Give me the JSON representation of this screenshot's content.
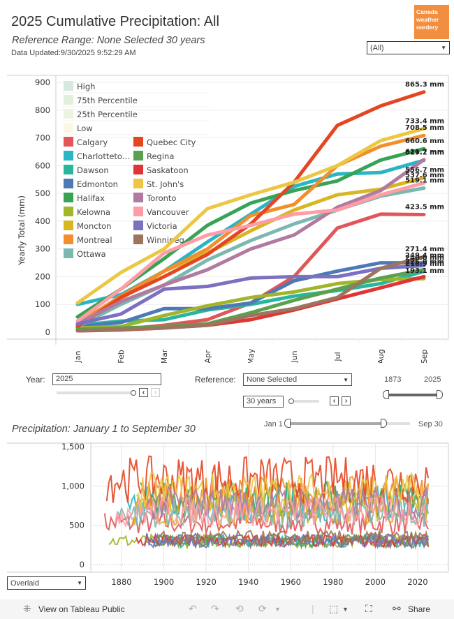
{
  "header": {
    "title": "2025 Cumulative Precipitation: All",
    "subtitle": "Reference Range: None Selected 30 years",
    "updated": "Data Updated:9/30/2025 9:52:29 AM",
    "logo_lines": [
      "Canada",
      "weather",
      "nerdery"
    ],
    "logo_color": "#f28e3f",
    "city_select": "(All)"
  },
  "legend": {
    "bands": [
      {
        "label": "High",
        "color": "#d6e8dd"
      },
      {
        "label": "75th Percentile",
        "color": "#e3efdd"
      },
      {
        "label": "25th Percentile",
        "color": "#eef3e0"
      },
      {
        "label": "Low",
        "color": "#fdf6e3"
      }
    ]
  },
  "chart_data": [
    {
      "type": "line",
      "title": "2025 Cumulative Precipitation",
      "ylabel": "Yearly Total (mm)",
      "xlabel": "",
      "categories": [
        "Jan",
        "Feb",
        "Mar",
        "Apr",
        "May",
        "Jun",
        "Jul",
        "Aug",
        "Sep"
      ],
      "ylim": [
        0,
        900
      ],
      "yticks": [
        0,
        100,
        200,
        300,
        400,
        500,
        600,
        700,
        800,
        900
      ],
      "grid": true,
      "legend_position": "top-left",
      "series": [
        {
          "name": "Calgary",
          "color": "#e15759",
          "values": [
            5,
            10,
            25,
            45,
            105,
            200,
            375,
            425,
            423.5
          ],
          "end_label": "423.5 mm"
        },
        {
          "name": "Charlotteto...",
          "color": "#2bb5c4",
          "values": [
            100,
            135,
            220,
            325,
            425,
            525,
            570,
            575,
            619.2
          ],
          "end_label": "619.2 mm"
        },
        {
          "name": "Dawson",
          "color": "#2ab59e",
          "values": [
            25,
            40,
            45,
            80,
            100,
            130,
            150,
            175,
            218.9
          ],
          "end_label": "218.9 mm"
        },
        {
          "name": "Edmonton",
          "color": "#4e79b7",
          "values": [
            20,
            35,
            85,
            85,
            105,
            185,
            220,
            250,
            249.4
          ],
          "end_label": "249.4 mm"
        },
        {
          "name": "Halifax",
          "color": "#37a355",
          "values": [
            55,
            155,
            265,
            385,
            465,
            510,
            545,
            620,
            660.6
          ],
          "end_label": "660.6 mm"
        },
        {
          "name": "Kelowna",
          "color": "#a0b52a",
          "values": [
            15,
            20,
            60,
            95,
            125,
            145,
            175,
            190,
            193.1
          ],
          "end_label": "193.1 mm"
        },
        {
          "name": "Moncton",
          "color": "#d8b623",
          "values": [
            40,
            120,
            220,
            285,
            365,
            440,
            495,
            515,
            556.7
          ],
          "end_label": "556.7 mm"
        },
        {
          "name": "Montreal",
          "color": "#f28e2b",
          "values": [
            30,
            130,
            220,
            300,
            420,
            460,
            600,
            670,
            708.5
          ],
          "end_label": "708.5 mm"
        },
        {
          "name": "Ottawa",
          "color": "#7ab8b0",
          "values": [
            20,
            100,
            170,
            260,
            330,
            390,
            440,
            490,
            519.1
          ],
          "end_label": "519.1 mm"
        },
        {
          "name": "Quebec City",
          "color": "#e44622",
          "values": [
            20,
            125,
            200,
            280,
            390,
            540,
            745,
            815,
            865.3
          ],
          "end_label": "865.3 mm"
        },
        {
          "name": "Regina",
          "color": "#59a14f",
          "values": [
            10,
            15,
            20,
            30,
            70,
            115,
            155,
            195,
            225
          ],
          "end_label": "225.0 mm"
        },
        {
          "name": "Saskatoon",
          "color": "#e03535",
          "values": [
            5,
            8,
            15,
            25,
            45,
            80,
            120,
            160,
            200
          ],
          "end_label": ""
        },
        {
          "name": "St. John's",
          "color": "#ecc744",
          "values": [
            105,
            215,
            300,
            445,
            495,
            540,
            600,
            690,
            733.4
          ],
          "end_label": "733.4 mm"
        },
        {
          "name": "Toronto",
          "color": "#b07aa1",
          "values": [
            30,
            110,
            170,
            225,
            300,
            350,
            450,
            510,
            621.7
          ],
          "end_label": "621.7 mm"
        },
        {
          "name": "Vancouver",
          "color": "#ff9da7",
          "values": [
            40,
            155,
            285,
            350,
            385,
            425,
            440,
            495,
            537.6
          ],
          "end_label": "537.6 mm"
        },
        {
          "name": "Victoria",
          "color": "#7c70c0",
          "values": [
            30,
            65,
            155,
            165,
            195,
            200,
            200,
            230,
            240
          ],
          "end_label": "240.0 mm"
        },
        {
          "name": "Winnipeg",
          "color": "#9c755f",
          "values": [
            5,
            10,
            15,
            25,
            60,
            85,
            125,
            230,
            271.4
          ],
          "end_label": "271.4 mm"
        }
      ]
    },
    {
      "type": "line",
      "title": "Precipitation: January 1 to September 30",
      "xlabel": "",
      "ylabel": "",
      "xlim": [
        1860,
        2030
      ],
      "xticks": [
        1880,
        1900,
        1920,
        1940,
        1960,
        1980,
        2000,
        2020
      ],
      "ylim": [
        0,
        1500
      ],
      "yticks": [
        0,
        500,
        1000,
        1500
      ],
      "ytick_labels": [
        "0",
        "500",
        "1,000",
        "1,500"
      ],
      "grid": true,
      "note": "Overlaid annual totals for all cities, roughly 1873-2025; values range ~100-1300 mm"
    }
  ],
  "controls": {
    "year_label": "Year:",
    "year_value": "2025",
    "reference_label": "Reference:",
    "reference_value": "None Selected",
    "years_value": "30 years",
    "range_start": "1873",
    "range_end": "2025",
    "date_start": "Jan 1",
    "date_end": "Sep 30",
    "year_slider_fraction": 1.0,
    "years_slider_fraction": 0.0,
    "date_slider_fraction": 0.75,
    "view_mode": "Overlaid"
  },
  "footer": {
    "view_on": "View on Tableau Public",
    "share": "Share"
  }
}
